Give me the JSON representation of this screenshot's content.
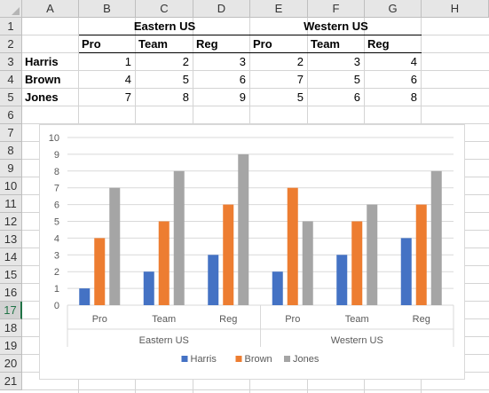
{
  "columns": [
    "A",
    "B",
    "C",
    "D",
    "E",
    "F",
    "G",
    "H"
  ],
  "rows": [
    "1",
    "2",
    "3",
    "4",
    "5",
    "6",
    "7",
    "8",
    "9",
    "10",
    "11",
    "12",
    "13",
    "14",
    "15",
    "16",
    "17",
    "18",
    "19",
    "20",
    "21"
  ],
  "table": {
    "group_headers": [
      "Eastern US",
      "Western US"
    ],
    "sub_headers": [
      "Pro",
      "Team",
      "Reg",
      "Pro",
      "Team",
      "Reg"
    ],
    "data_rows": [
      {
        "name": "Harris",
        "values": [
          1,
          2,
          3,
          2,
          3,
          4
        ]
      },
      {
        "name": "Brown",
        "values": [
          4,
          5,
          6,
          7,
          5,
          6
        ]
      },
      {
        "name": "Jones",
        "values": [
          7,
          8,
          9,
          5,
          6,
          8
        ]
      }
    ]
  },
  "chart_data": {
    "type": "bar",
    "groups": [
      {
        "label": "Eastern US",
        "categories": [
          "Pro",
          "Team",
          "Reg"
        ]
      },
      {
        "label": "Western US",
        "categories": [
          "Pro",
          "Team",
          "Reg"
        ]
      }
    ],
    "series": [
      {
        "name": "Harris",
        "color": "#4472c4",
        "values": [
          1,
          2,
          3,
          2,
          3,
          4
        ]
      },
      {
        "name": "Brown",
        "color": "#ed7d31",
        "values": [
          4,
          5,
          6,
          7,
          5,
          6
        ]
      },
      {
        "name": "Jones",
        "color": "#a5a5a5",
        "values": [
          7,
          8,
          9,
          5,
          6,
          8
        ]
      }
    ],
    "yticks": [
      "0",
      "1",
      "2",
      "3",
      "4",
      "5",
      "6",
      "7",
      "8",
      "9",
      "10"
    ],
    "ylim": [
      0,
      10
    ],
    "grid": true,
    "legend": "bottom"
  }
}
